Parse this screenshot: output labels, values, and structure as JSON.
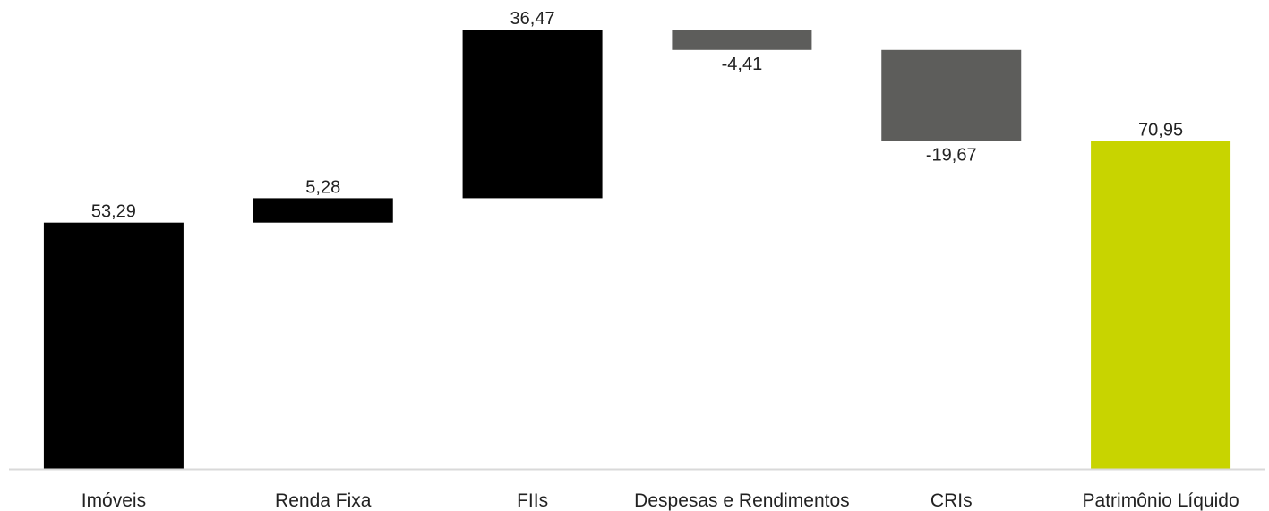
{
  "chart_data": {
    "type": "bar",
    "subtype": "waterfall",
    "title": "",
    "xlabel": "",
    "ylabel": "",
    "ylim": [
      0,
      90
    ],
    "grid": false,
    "legend": "none",
    "categories": [
      "Imóveis",
      "Renda Fixa",
      "FIIs",
      "Despesas e Rendimentos",
      "CRIs",
      "Patrimônio Líquido"
    ],
    "values": [
      53.29,
      5.28,
      36.47,
      -4.41,
      -19.67,
      70.95
    ],
    "value_labels": [
      "53,29",
      "5,28",
      "36,47",
      "-4,41",
      "-19,67",
      "70,95"
    ],
    "bar_kinds": [
      "increase",
      "increase",
      "increase",
      "decrease",
      "decrease",
      "total"
    ],
    "colors": {
      "increase": "#000000",
      "decrease": "#5d5d5b",
      "total": "#c8d400",
      "axis": "#d9d9d9",
      "text": "#222222"
    }
  }
}
